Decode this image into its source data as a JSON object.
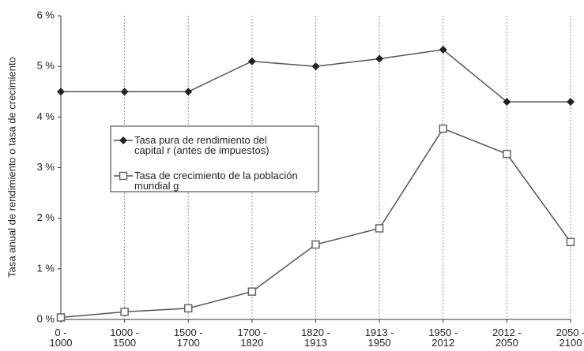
{
  "chart_data": {
    "type": "line",
    "ylabel": "Tasa anual de rendimiento o tasa de crecimiento",
    "categories": [
      "0 -\n1000",
      "1000 -\n1500",
      "1500 -\n1700",
      "1700 -\n1820",
      "1820 -\n1913",
      "1913 -\n1950",
      "1950 -\n2012",
      "2012 -\n2050",
      "2050 -\n2100"
    ],
    "series": [
      {
        "name": "Tasa pura de rendimiento del\ncapital r (antes de impuestos)",
        "color": "#222222",
        "marker": "diamond",
        "values": [
          4.5,
          4.5,
          4.5,
          5.1,
          5.0,
          5.15,
          5.33,
          4.3,
          4.3
        ]
      },
      {
        "name": "Tasa de crecimiento de la población\nmundial g",
        "color": "#666666",
        "marker": "square",
        "values": [
          0.04,
          0.15,
          0.22,
          0.55,
          1.48,
          1.8,
          3.77,
          3.27,
          1.53
        ]
      }
    ],
    "ylim": [
      0,
      6
    ],
    "yticks": [
      {
        "value": 0,
        "label": "0 %"
      },
      {
        "value": 1,
        "label": "1 %"
      },
      {
        "value": 2,
        "label": "2 %"
      },
      {
        "value": 3,
        "label": "3 %"
      },
      {
        "value": 4,
        "label": "4 %"
      },
      {
        "value": 5,
        "label": "5 %"
      },
      {
        "value": 6,
        "label": "6 %"
      }
    ],
    "grid": "x"
  }
}
